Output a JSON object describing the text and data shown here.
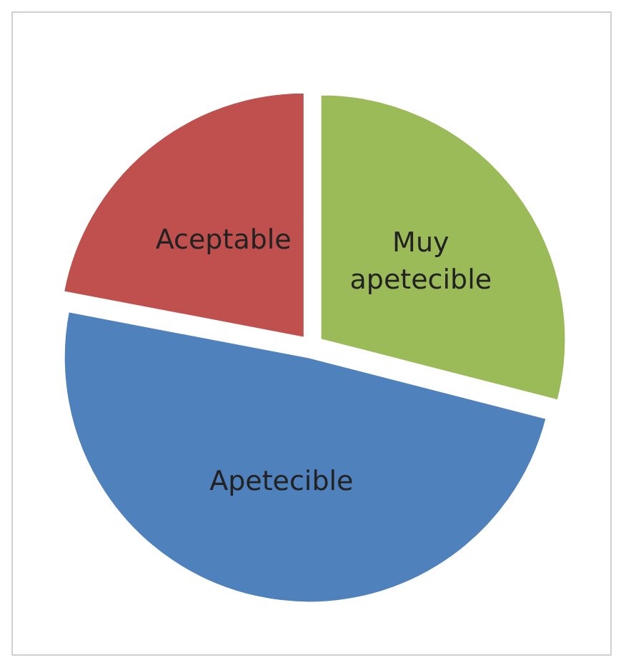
{
  "chart_data": {
    "type": "pie",
    "categories": [
      "Muy apetecible",
      "Apetecible",
      "Aceptable"
    ],
    "values": [
      29,
      49,
      22
    ],
    "colors": [
      "#9bbb59",
      "#4f81bd",
      "#c0504d"
    ],
    "legend": false
  }
}
